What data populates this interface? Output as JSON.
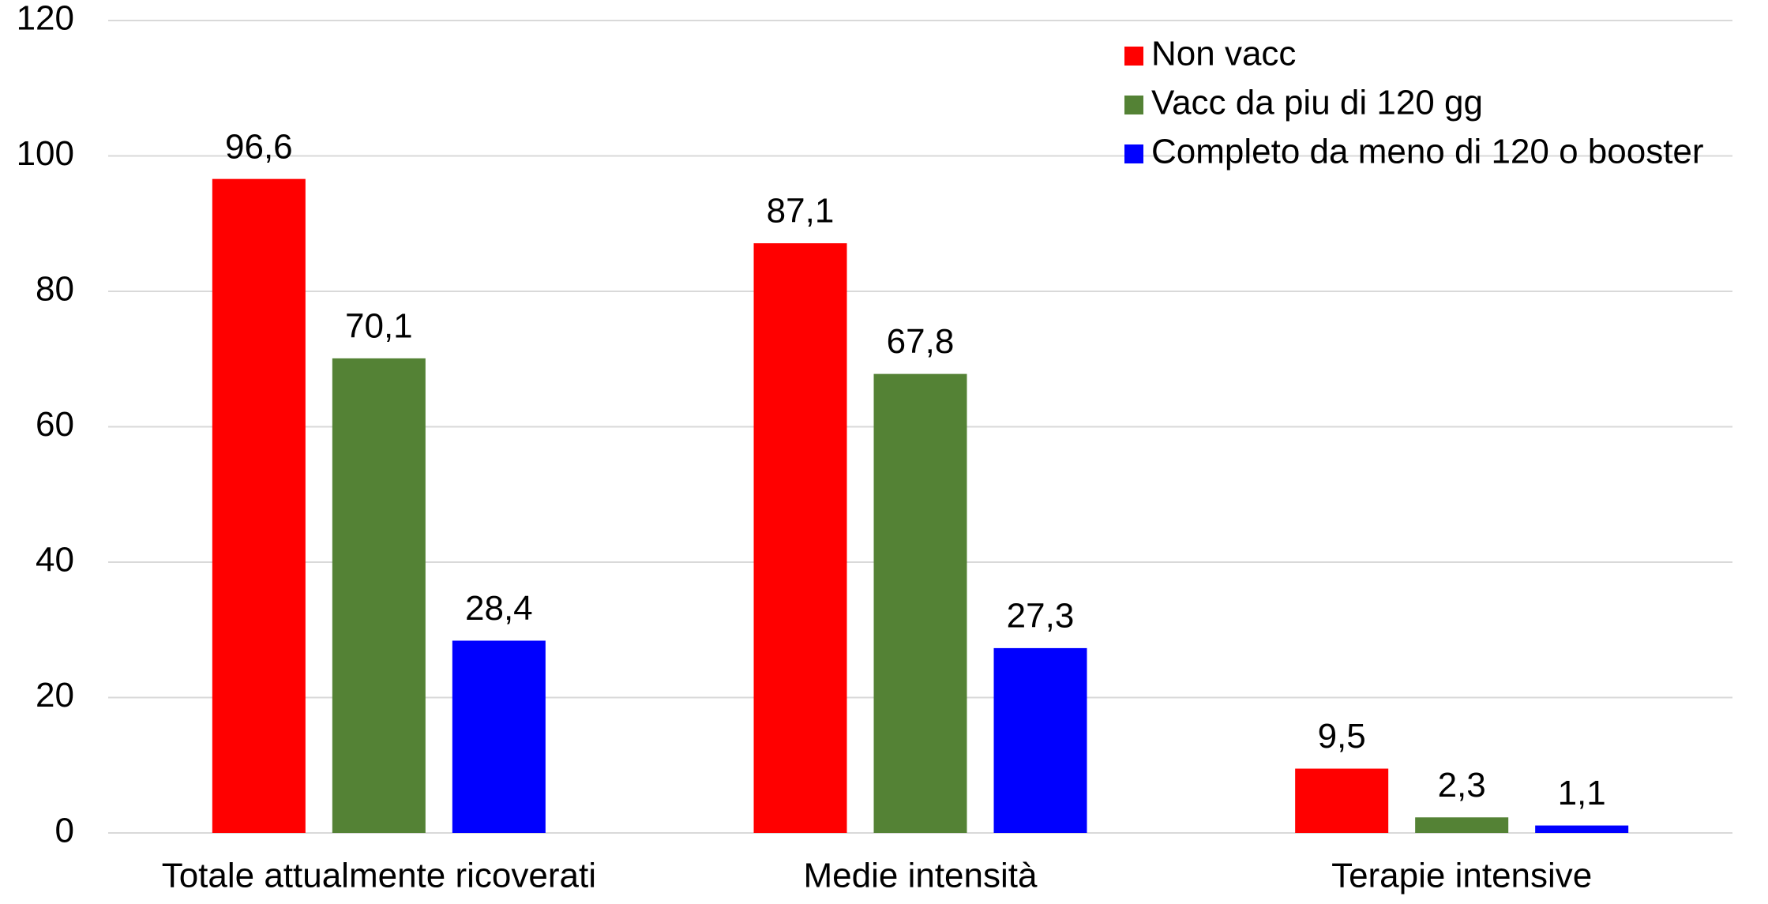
{
  "chart_data": {
    "type": "bar",
    "categories": [
      "Totale attualmente ricoverati",
      "Medie intensità",
      "Terapie intensive"
    ],
    "series": [
      {
        "name": "Non vacc",
        "color": "#ff0000",
        "values": [
          96.6,
          87.1,
          9.5
        ],
        "value_labels": [
          "96,6",
          "87,1",
          "9,5"
        ]
      },
      {
        "name": "Vacc da piu di 120 gg",
        "color": "#548235",
        "values": [
          70.1,
          67.8,
          2.3
        ],
        "value_labels": [
          "70,1",
          "67,8",
          "2,3"
        ]
      },
      {
        "name": "Completo da meno di 120 o booster",
        "color": "#0000ff",
        "values": [
          28.4,
          27.3,
          1.1
        ],
        "value_labels": [
          "28,4",
          "27,3",
          "1,1"
        ]
      }
    ],
    "ylim": [
      0,
      120
    ],
    "yticks": [
      0,
      20,
      40,
      60,
      80,
      100,
      120
    ],
    "grid": true,
    "legend": "top-right"
  }
}
